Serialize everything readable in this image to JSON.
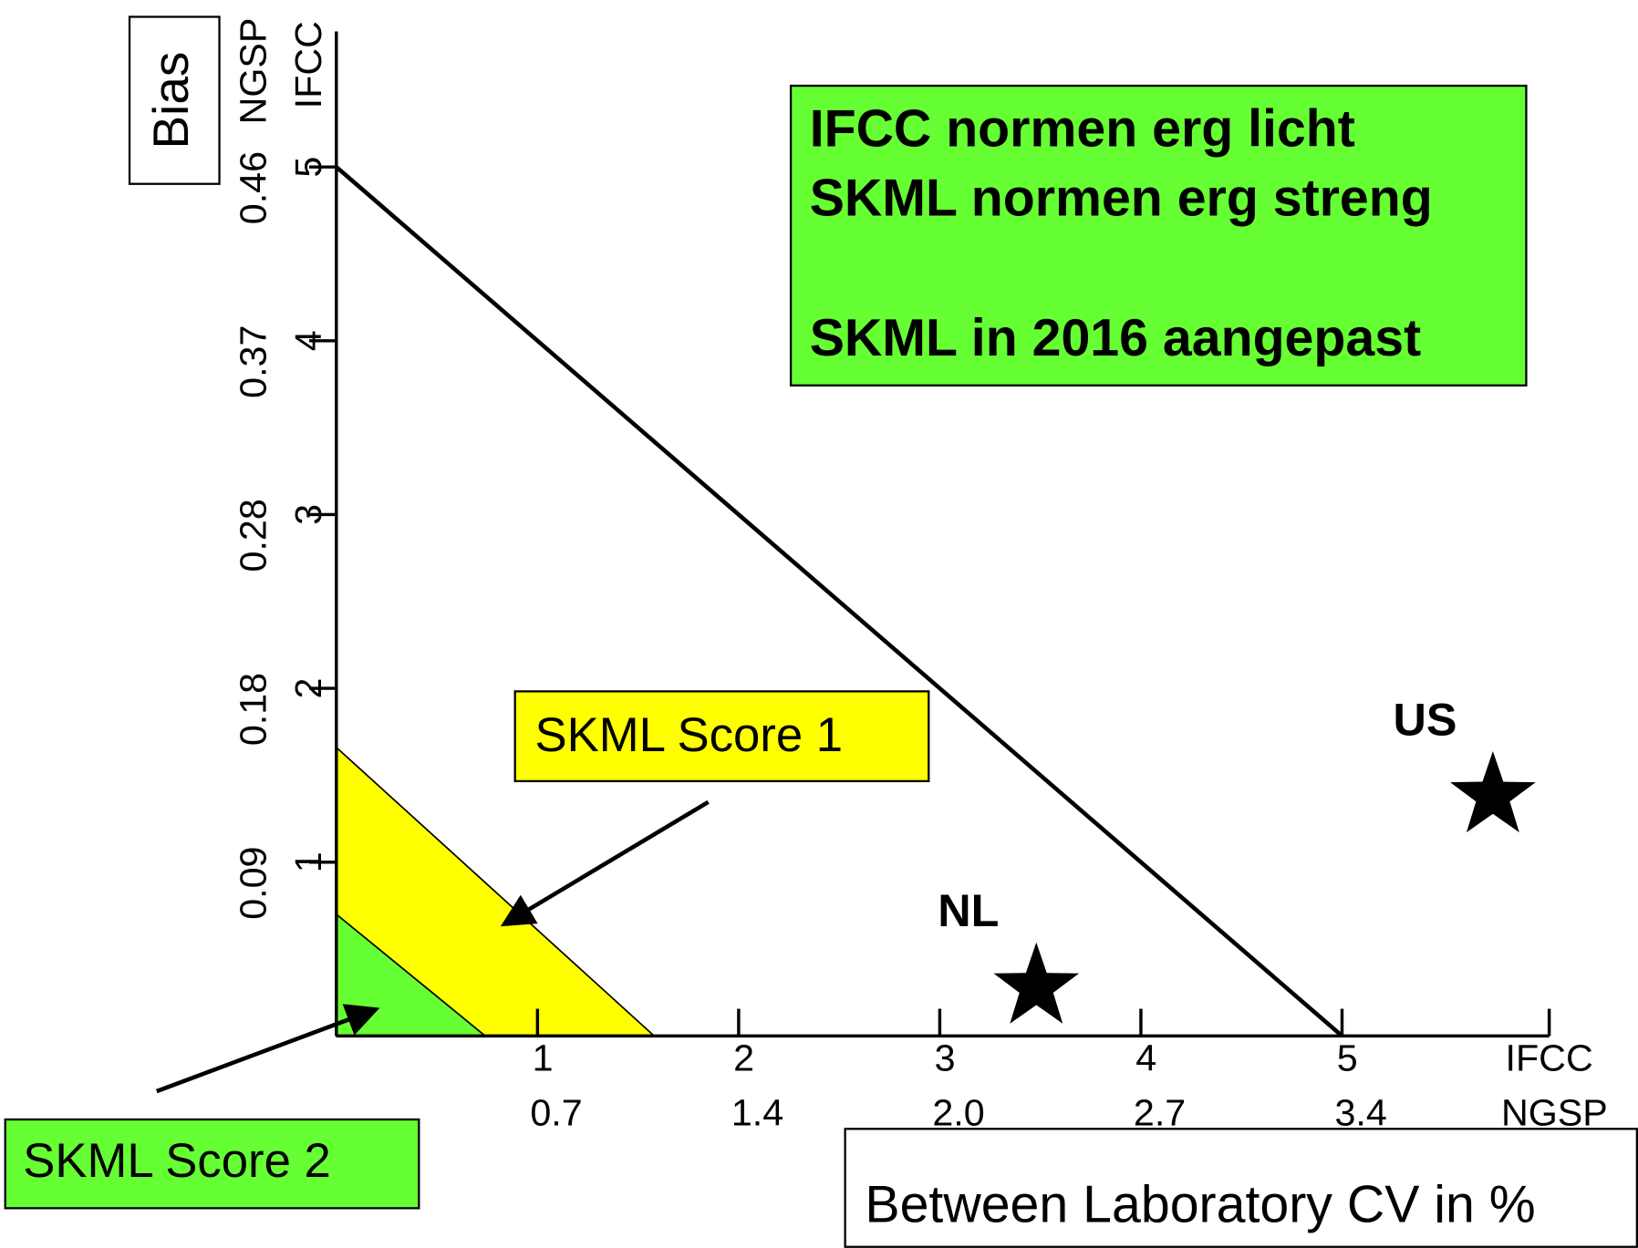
{
  "chart_data": {
    "type": "region",
    "y_axis_label": "Bias",
    "x_axis_label": "Between Laboratory CV in %",
    "x_units": [
      "IFCC",
      "NGSP"
    ],
    "y_units": [
      "IFCC",
      "NGSP"
    ],
    "xlim": [
      0,
      6.03
    ],
    "ylim": [
      0,
      5.78
    ],
    "xticks": [
      1,
      2,
      3,
      4,
      5
    ],
    "xticks2": [
      {
        "value": 1,
        "label": "0.7"
      },
      {
        "value": 2,
        "label": "1.4"
      },
      {
        "value": 3,
        "label": "2.0"
      },
      {
        "value": 4,
        "label": "2.7"
      },
      {
        "value": 5,
        "label": "3.4"
      }
    ],
    "yticks": [
      1,
      2,
      3,
      4,
      5
    ],
    "yticks2": [
      {
        "value": 1,
        "label": "0.09"
      },
      {
        "value": 2,
        "label": "0.18"
      },
      {
        "value": 3,
        "label": "0.28"
      },
      {
        "value": 4,
        "label": "0.37"
      },
      {
        "value": 5,
        "label": "0.46"
      }
    ],
    "regions": [
      {
        "name": "SKML Score 1",
        "color": "#ffff00",
        "x": [
          0,
          0,
          1.58
        ],
        "y": [
          0,
          1.66,
          0
        ]
      },
      {
        "name": "SKML Score 2",
        "color": "#66ff33",
        "x": [
          0,
          0,
          0.74
        ],
        "y": [
          0,
          0.7,
          0
        ]
      }
    ],
    "line": {
      "x": [
        0,
        5
      ],
      "y": [
        5,
        0
      ]
    },
    "points": [
      {
        "name": "NL",
        "x": 3.48,
        "y": 0.28
      },
      {
        "name": "US",
        "x": 5.75,
        "y": 1.38
      }
    ],
    "note": {
      "color": "#66ff33",
      "lines": [
        "IFCC normen erg licht",
        "SKML normen erg streng",
        "SKML in 2016 aangepast"
      ]
    }
  }
}
